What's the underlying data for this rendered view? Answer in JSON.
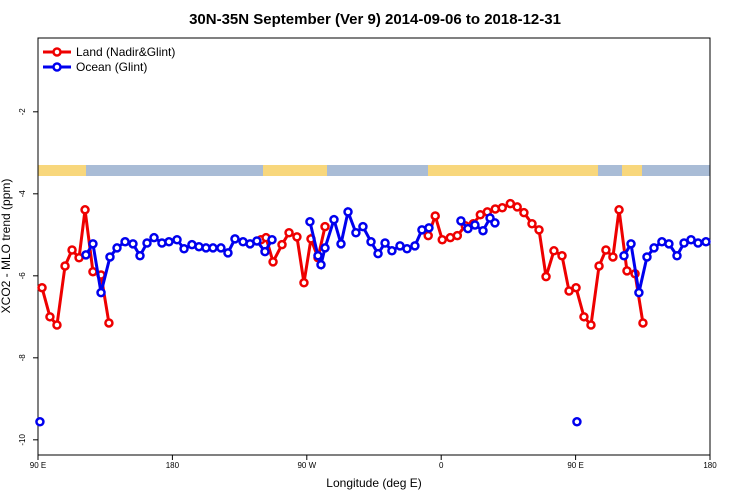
{
  "chart_data": {
    "type": "line",
    "title": "30N-35N September (Ver 9)   2014-09-06 to 2018-12-31",
    "x_label": "Longitude (deg E)",
    "y_label": "XCO2 - MLO trend (ppm)",
    "xlim": [
      90,
      540
    ],
    "xticks": [
      {
        "value": 90,
        "label": "90 E"
      },
      180,
      {
        "value": 270,
        "label": "90 W"
      },
      {
        "value": 360,
        "label": "0"
      },
      {
        "value": 450,
        "label": "90 E"
      },
      {
        "value": 540,
        "label": "180"
      }
    ],
    "ylim": [
      -10.37,
      -0.2
    ],
    "yticks": [
      -2,
      -4,
      -6,
      -8,
      -10
    ],
    "legend": "top-left",
    "series": [
      {
        "name": "Land (Nadir&Glint)",
        "color": "#ee0000",
        "x": [
          92.7,
          98.0,
          102.7,
          108.1,
          112.8,
          117.5,
          121.5,
          126.8,
          132.2,
          137.5,
          null,
          239.3,
          242.7,
          247.4,
          253.4,
          258.1,
          263.4,
          268.1,
          272.8,
          277.5,
          282.2,
          null,
          351.3,
          356.0,
          360.7,
          366.1,
          370.8,
          376.1,
          381.5,
          386.2,
          390.9,
          396.2,
          400.9,
          406.3,
          410.9,
          415.4,
          420.8,
          425.5,
          430.2,
          435.5,
          440.9,
          445.6,
          450.3,
          455.6,
          460.3,
          465.7,
          470.3,
          475.0,
          479.1,
          484.4,
          489.8,
          495.1
        ],
        "values": [
          -6.29,
          -7.0,
          -7.2,
          -5.76,
          -5.37,
          -5.56,
          -4.39,
          -5.9,
          -5.98,
          -7.15,
          null,
          -5.12,
          -5.07,
          -5.66,
          -5.24,
          -4.95,
          -5.05,
          -6.17,
          -5.1,
          -5.56,
          -4.8,
          null,
          -5.02,
          -4.54,
          -5.12,
          -5.07,
          -5.02,
          -4.78,
          -4.73,
          -4.51,
          -4.44,
          -4.37,
          -4.34,
          -4.24,
          -4.32,
          -4.46,
          -4.73,
          -4.88,
          -6.02,
          -5.39,
          -5.51,
          -6.37,
          -6.29,
          -7.0,
          -7.2,
          -5.76,
          -5.37,
          -5.54,
          -4.39,
          -5.88,
          -5.95,
          -7.15
        ]
      },
      {
        "name": "Ocean (Glint)",
        "color": "#0000ee",
        "x": [
          91.3,
          null,
          122.1,
          126.8,
          132.2,
          138.2,
          142.9,
          148.3,
          153.6,
          158.3,
          163.0,
          167.7,
          173.0,
          177.7,
          183.1,
          187.8,
          193.1,
          197.8,
          202.5,
          207.2,
          212.5,
          217.2,
          221.9,
          227.3,
          232.0,
          236.6,
          242.0,
          246.7,
          null,
          272.1,
          277.5,
          279.5,
          282.2,
          288.2,
          292.9,
          297.6,
          302.9,
          307.6,
          313.0,
          317.7,
          322.4,
          327.0,
          332.4,
          337.1,
          342.4,
          347.1,
          351.8,
          null,
          373.2,
          377.9,
          382.6,
          388.0,
          392.7,
          396.0,
          null,
          450.9,
          null,
          482.4,
          487.1,
          492.4,
          497.8,
          502.5,
          507.8,
          512.5,
          517.9,
          522.6,
          527.3,
          532.0,
          537.3
        ],
        "values": [
          -9.56,
          null,
          -5.49,
          -5.22,
          -6.41,
          -5.54,
          -5.32,
          -5.17,
          -5.22,
          -5.51,
          -5.2,
          -5.07,
          -5.2,
          -5.17,
          -5.12,
          -5.34,
          -5.24,
          -5.29,
          -5.32,
          -5.32,
          -5.32,
          -5.44,
          -5.1,
          -5.17,
          -5.22,
          -5.15,
          -5.41,
          -5.12,
          null,
          -4.68,
          -5.51,
          -5.73,
          -5.32,
          -4.63,
          -5.22,
          -4.44,
          -4.95,
          -4.8,
          -5.17,
          -5.46,
          -5.2,
          -5.39,
          -5.27,
          -5.34,
          -5.27,
          -4.88,
          -4.83,
          null,
          -4.66,
          -4.85,
          -4.76,
          -4.9,
          -4.59,
          -4.71,
          null,
          -9.56,
          null,
          -5.51,
          -5.22,
          -6.41,
          -5.54,
          -5.32,
          -5.17,
          -5.22,
          -5.51,
          -5.2,
          -5.12,
          -5.2,
          -5.17
        ]
      }
    ]
  }
}
